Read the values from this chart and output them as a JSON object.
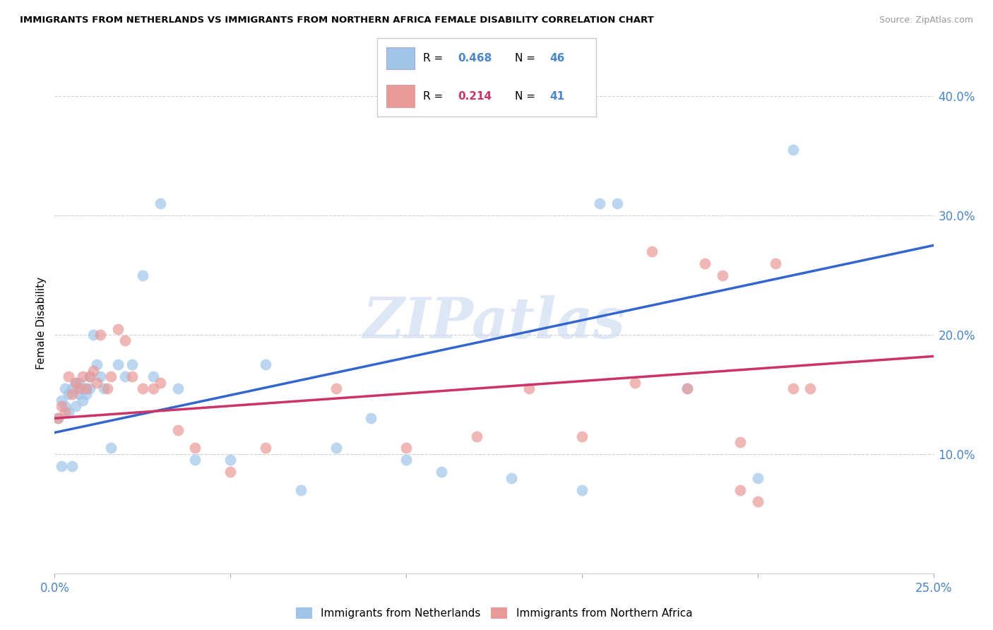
{
  "title": "IMMIGRANTS FROM NETHERLANDS VS IMMIGRANTS FROM NORTHERN AFRICA FEMALE DISABILITY CORRELATION CHART",
  "source": "Source: ZipAtlas.com",
  "ylabel": "Female Disability",
  "xlim": [
    0.0,
    0.25
  ],
  "ylim": [
    0.0,
    0.42
  ],
  "yticks": [
    0.1,
    0.2,
    0.3,
    0.4
  ],
  "ytick_labels": [
    "10.0%",
    "20.0%",
    "30.0%",
    "40.0%"
  ],
  "blue_color": "#9fc5e8",
  "pink_color": "#ea9999",
  "blue_line_color": "#3366cc",
  "pink_line_color": "#cc3366",
  "axis_color": "#4a86c8",
  "grid_color": "#cccccc",
  "watermark": "ZIPatlas",
  "blue_x": [
    0.001,
    0.002,
    0.002,
    0.003,
    0.003,
    0.004,
    0.004,
    0.005,
    0.005,
    0.006,
    0.006,
    0.007,
    0.007,
    0.008,
    0.008,
    0.009,
    0.009,
    0.01,
    0.01,
    0.011,
    0.012,
    0.013,
    0.014,
    0.016,
    0.018,
    0.02,
    0.022,
    0.025,
    0.028,
    0.03,
    0.035,
    0.04,
    0.05,
    0.06,
    0.07,
    0.08,
    0.09,
    0.1,
    0.11,
    0.13,
    0.15,
    0.16,
    0.18,
    0.2,
    0.155,
    0.21
  ],
  "blue_y": [
    0.13,
    0.145,
    0.09,
    0.155,
    0.14,
    0.135,
    0.15,
    0.155,
    0.09,
    0.14,
    0.16,
    0.15,
    0.16,
    0.145,
    0.155,
    0.15,
    0.155,
    0.155,
    0.165,
    0.2,
    0.175,
    0.165,
    0.155,
    0.105,
    0.175,
    0.165,
    0.175,
    0.25,
    0.165,
    0.31,
    0.155,
    0.095,
    0.095,
    0.175,
    0.07,
    0.105,
    0.13,
    0.095,
    0.085,
    0.08,
    0.07,
    0.31,
    0.155,
    0.08,
    0.31,
    0.355
  ],
  "pink_x": [
    0.001,
    0.002,
    0.003,
    0.004,
    0.005,
    0.006,
    0.007,
    0.008,
    0.009,
    0.01,
    0.011,
    0.012,
    0.013,
    0.015,
    0.016,
    0.018,
    0.02,
    0.022,
    0.025,
    0.028,
    0.03,
    0.035,
    0.04,
    0.05,
    0.06,
    0.08,
    0.1,
    0.12,
    0.135,
    0.15,
    0.165,
    0.17,
    0.18,
    0.185,
    0.19,
    0.195,
    0.2,
    0.205,
    0.21,
    0.215,
    0.195
  ],
  "pink_y": [
    0.13,
    0.14,
    0.135,
    0.165,
    0.15,
    0.16,
    0.155,
    0.165,
    0.155,
    0.165,
    0.17,
    0.16,
    0.2,
    0.155,
    0.165,
    0.205,
    0.195,
    0.165,
    0.155,
    0.155,
    0.16,
    0.12,
    0.105,
    0.085,
    0.105,
    0.155,
    0.105,
    0.115,
    0.155,
    0.115,
    0.16,
    0.27,
    0.155,
    0.26,
    0.25,
    0.11,
    0.06,
    0.26,
    0.155,
    0.155,
    0.07
  ]
}
